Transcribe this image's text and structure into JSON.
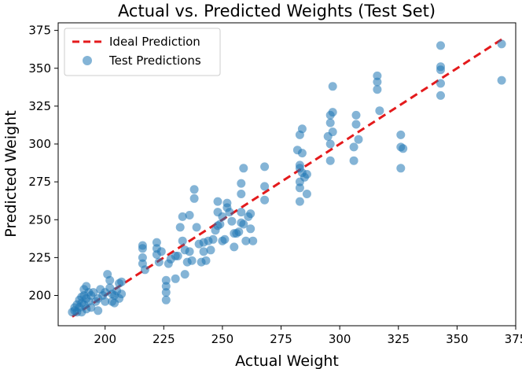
{
  "chart_data": {
    "type": "scatter",
    "title": "Actual vs. Predicted Weights (Test Set)",
    "xlabel": "Actual Weight",
    "ylabel": "Predicted Weight",
    "xlim": [
      180,
      375
    ],
    "ylim": [
      180,
      380
    ],
    "xticks": [
      200,
      225,
      250,
      275,
      300,
      325,
      350,
      375
    ],
    "yticks": [
      200,
      225,
      250,
      275,
      300,
      325,
      350,
      375
    ],
    "legend": {
      "position": "top-left",
      "entries": [
        "Ideal Prediction",
        "Test Predictions"
      ]
    },
    "ideal_line": {
      "name": "Ideal Prediction",
      "x": [
        186,
        370
      ],
      "y": [
        186,
        370
      ],
      "color": "#e41a1c",
      "style": "dashed"
    },
    "series": [
      {
        "name": "Test Predictions",
        "color": "#1f77b4",
        "points": [
          [
            186,
            189
          ],
          [
            187,
            190
          ],
          [
            187,
            192
          ],
          [
            188,
            194
          ],
          [
            188,
            189
          ],
          [
            189,
            197
          ],
          [
            189,
            192
          ],
          [
            190,
            199
          ],
          [
            190,
            195
          ],
          [
            190,
            189
          ],
          [
            191,
            204
          ],
          [
            191,
            200
          ],
          [
            191,
            194
          ],
          [
            192,
            206
          ],
          [
            192,
            198
          ],
          [
            192,
            191
          ],
          [
            193,
            202
          ],
          [
            193,
            196
          ],
          [
            194,
            200
          ],
          [
            194,
            192
          ],
          [
            195,
            202
          ],
          [
            196,
            196
          ],
          [
            197,
            190
          ],
          [
            197,
            198
          ],
          [
            198,
            204
          ],
          [
            199,
            200
          ],
          [
            200,
            196
          ],
          [
            200,
            202
          ],
          [
            201,
            214
          ],
          [
            202,
            210
          ],
          [
            202,
            205
          ],
          [
            203,
            201
          ],
          [
            203,
            196
          ],
          [
            204,
            200
          ],
          [
            204,
            195
          ],
          [
            205,
            203
          ],
          [
            206,
            208
          ],
          [
            206,
            198
          ],
          [
            207,
            201
          ],
          [
            207,
            209
          ],
          [
            216,
            233
          ],
          [
            216,
            231
          ],
          [
            216,
            225
          ],
          [
            216,
            221
          ],
          [
            217,
            217
          ],
          [
            222,
            235
          ],
          [
            222,
            231
          ],
          [
            222,
            227
          ],
          [
            223,
            222
          ],
          [
            224,
            229
          ],
          [
            226,
            210
          ],
          [
            226,
            206
          ],
          [
            226,
            202
          ],
          [
            226,
            197
          ],
          [
            227,
            221
          ],
          [
            228,
            224
          ],
          [
            230,
            226
          ],
          [
            230,
            211
          ],
          [
            231,
            226
          ],
          [
            232,
            245
          ],
          [
            233,
            252
          ],
          [
            233,
            236
          ],
          [
            234,
            230
          ],
          [
            234,
            214
          ],
          [
            235,
            222
          ],
          [
            236,
            253
          ],
          [
            236,
            229
          ],
          [
            237,
            223
          ],
          [
            238,
            264
          ],
          [
            238,
            270
          ],
          [
            239,
            245
          ],
          [
            240,
            234
          ],
          [
            241,
            222
          ],
          [
            242,
            235
          ],
          [
            242,
            229
          ],
          [
            243,
            223
          ],
          [
            244,
            236
          ],
          [
            245,
            230
          ],
          [
            246,
            237
          ],
          [
            247,
            243
          ],
          [
            248,
            262
          ],
          [
            248,
            255
          ],
          [
            248,
            246
          ],
          [
            249,
            247
          ],
          [
            250,
            252
          ],
          [
            250,
            236
          ],
          [
            251,
            237
          ],
          [
            252,
            261
          ],
          [
            252,
            258
          ],
          [
            253,
            255
          ],
          [
            254,
            249
          ],
          [
            255,
            241
          ],
          [
            255,
            232
          ],
          [
            256,
            241
          ],
          [
            257,
            242
          ],
          [
            258,
            274
          ],
          [
            258,
            267
          ],
          [
            258,
            255
          ],
          [
            258,
            248
          ],
          [
            259,
            284
          ],
          [
            259,
            247
          ],
          [
            260,
            236
          ],
          [
            261,
            252
          ],
          [
            262,
            254
          ],
          [
            262,
            244
          ],
          [
            263,
            236
          ],
          [
            268,
            285
          ],
          [
            268,
            272
          ],
          [
            268,
            263
          ],
          [
            282,
            296
          ],
          [
            283,
            275
          ],
          [
            283,
            271
          ],
          [
            283,
            262
          ],
          [
            283,
            306
          ],
          [
            283,
            286
          ],
          [
            283,
            284
          ],
          [
            284,
            310
          ],
          [
            284,
            294
          ],
          [
            284,
            281
          ],
          [
            285,
            278
          ],
          [
            286,
            267
          ],
          [
            286,
            280
          ],
          [
            295,
            305
          ],
          [
            296,
            319
          ],
          [
            296,
            314
          ],
          [
            296,
            300
          ],
          [
            296,
            289
          ],
          [
            297,
            338
          ],
          [
            297,
            321
          ],
          [
            297,
            308
          ],
          [
            306,
            289
          ],
          [
            306,
            298
          ],
          [
            307,
            313
          ],
          [
            307,
            319
          ],
          [
            308,
            303
          ],
          [
            316,
            345
          ],
          [
            316,
            341
          ],
          [
            316,
            336
          ],
          [
            317,
            322
          ],
          [
            326,
            306
          ],
          [
            326,
            298
          ],
          [
            326,
            284
          ],
          [
            327,
            297
          ],
          [
            343,
            365
          ],
          [
            343,
            351
          ],
          [
            343,
            349
          ],
          [
            343,
            340
          ],
          [
            343,
            332
          ],
          [
            369,
            366
          ],
          [
            369,
            342
          ]
        ]
      }
    ]
  }
}
